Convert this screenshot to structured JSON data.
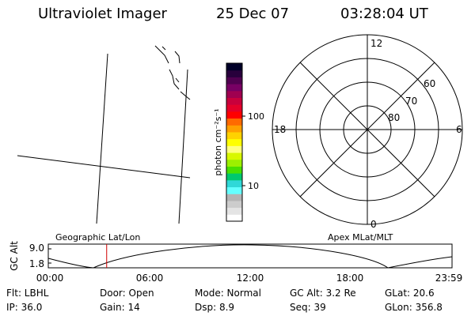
{
  "header": {
    "instrument": "Ultraviolet Imager",
    "date": "25 Dec 07",
    "time": "03:28:04 UT"
  },
  "colorbar": {
    "unit_label": "photon cm⁻²s⁻¹",
    "tick_100": "100",
    "tick_10": "10",
    "colors": [
      "#ffffff",
      "#e4e4e4",
      "#cccccc",
      "#b4b4b4",
      "#64ffff",
      "#30d8d8",
      "#00c86e",
      "#48e000",
      "#9cf000",
      "#d8f800",
      "#ffff80",
      "#ffff00",
      "#ffd200",
      "#ffa000",
      "#ff6a00",
      "#ff0000",
      "#e4002a",
      "#c8003c",
      "#a00050",
      "#780064",
      "#500050",
      "#28003c",
      "#000028"
    ]
  },
  "panels": {
    "left_caption": "Geographic Lat/Lon",
    "right_caption": "Apex MLat/MLT"
  },
  "polar": {
    "mlt_top": "12",
    "mlt_left": "18",
    "mlt_right": "6",
    "mlt_bottom": "0",
    "lat_60": "60",
    "lat_70": "70",
    "lat_80": "80"
  },
  "orbit": {
    "axis_label": "GC Alt",
    "y_max": "9.0",
    "y_min": "1.8",
    "x_ticks": [
      "00:00",
      "06:00",
      "12:00",
      "18:00",
      "23:59"
    ],
    "current_time_fraction": 0.1446
  },
  "info": {
    "flt": "Flt:  LBHL",
    "door": "Door:  Open",
    "mode": "Mode:  Normal",
    "gc_alt": "GC Alt:  3.2 Re",
    "glat": "GLat:   20.6",
    "ip": "IP:  36.0",
    "gain": "Gain:  14",
    "dsp": "Dsp:      8.9",
    "seq": "Seq:  39",
    "glon": "GLon:  356.8"
  }
}
